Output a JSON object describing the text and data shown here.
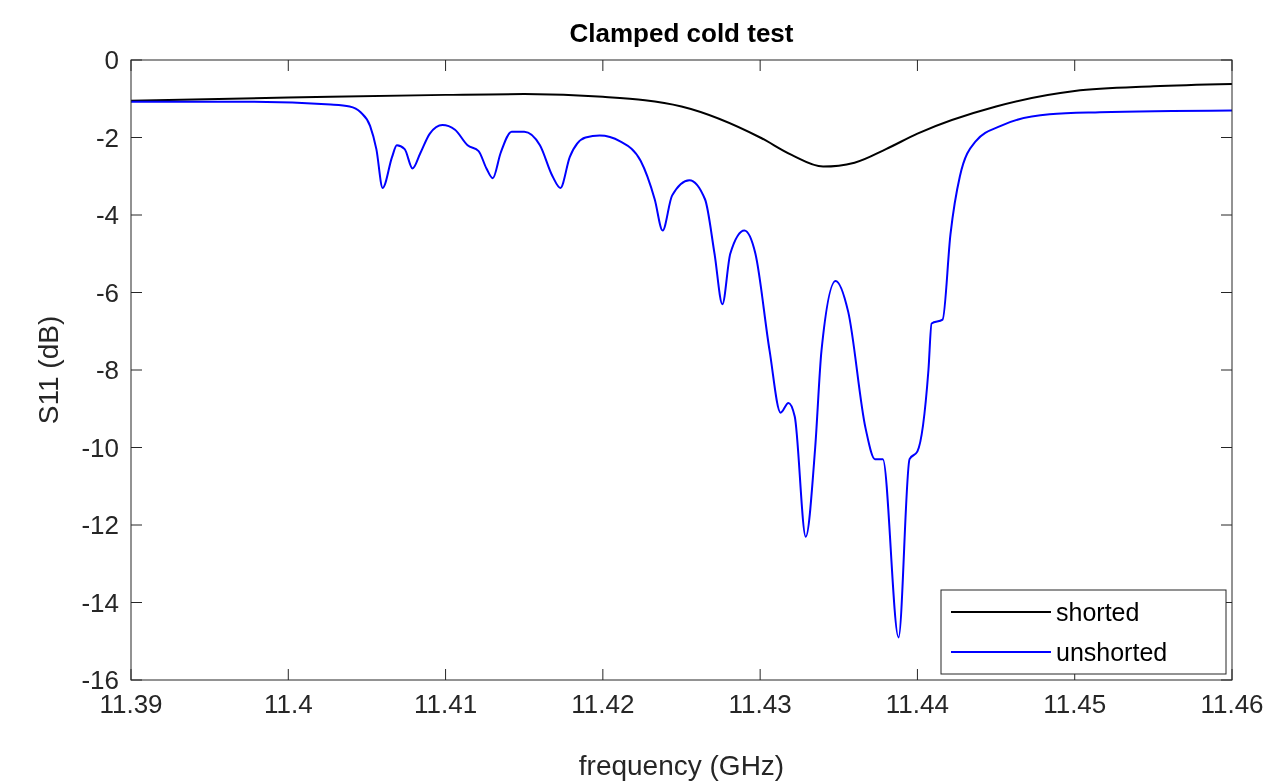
{
  "chart_data": {
    "type": "line",
    "title": "Clamped cold test",
    "xlabel": "frequency (GHz)",
    "ylabel": "S11 (dB)",
    "xlim": [
      11.39,
      11.46
    ],
    "xticks": [
      11.39,
      11.4,
      11.41,
      11.42,
      11.43,
      11.44,
      11.45,
      11.46
    ],
    "ylim": [
      -16,
      0
    ],
    "yticks": [
      -16,
      -14,
      -12,
      -10,
      -8,
      -6,
      -4,
      -2,
      0
    ],
    "grid": false,
    "legend": "bottom right",
    "marker": "none",
    "line_style": "solid",
    "series": [
      {
        "name": "shorted",
        "color": "#000000",
        "x": [
          11.39,
          11.4,
          11.41,
          11.415,
          11.42,
          11.425,
          11.43,
          11.432,
          11.434,
          11.436,
          11.438,
          11.44,
          11.445,
          11.45,
          11.455,
          11.46
        ],
        "values": [
          -1.05,
          -0.97,
          -0.9,
          -0.88,
          -0.95,
          -1.2,
          -2.0,
          -2.45,
          -2.75,
          -2.65,
          -2.3,
          -1.9,
          -1.2,
          -0.8,
          -0.68,
          -0.62
        ]
      },
      {
        "name": "unshorted",
        "color": "#0000ff",
        "x": [
          11.39,
          11.3976,
          11.4027,
          11.4039,
          11.4046,
          11.4052,
          11.4056,
          11.406,
          11.4066,
          11.4069,
          11.4074,
          11.4079,
          11.4084,
          11.409,
          11.4098,
          11.4106,
          11.4114,
          11.4121,
          11.4126,
          11.413,
          11.4135,
          11.4142,
          11.415,
          11.416,
          11.4168,
          11.4173,
          11.4179,
          11.4189,
          11.4198,
          11.4211,
          11.4224,
          11.4233,
          11.4238,
          11.4244,
          11.4255,
          11.4265,
          11.4271,
          11.4276,
          11.4281,
          11.429,
          11.4297,
          11.4306,
          11.4313,
          11.4318,
          11.4322,
          11.4329,
          11.4335,
          11.4339,
          11.4348,
          11.4356,
          11.4367,
          11.4373,
          11.4378,
          11.4388,
          11.4395,
          11.44,
          11.4407,
          11.4409,
          11.4416,
          11.4421,
          11.4427,
          11.4437,
          11.4453,
          11.4484,
          11.4516,
          11.46
        ],
        "values": [
          -1.08,
          -1.08,
          -1.15,
          -1.2,
          -1.35,
          -1.7,
          -2.3,
          -3.3,
          -2.5,
          -2.2,
          -2.3,
          -2.8,
          -2.4,
          -1.9,
          -1.68,
          -1.8,
          -2.2,
          -2.35,
          -2.8,
          -3.05,
          -2.4,
          -1.85,
          -1.85,
          -2.2,
          -3.0,
          -3.3,
          -2.5,
          -2.0,
          -1.95,
          -2.1,
          -2.6,
          -3.6,
          -4.4,
          -3.5,
          -3.1,
          -3.6,
          -5.0,
          -6.3,
          -5.0,
          -4.4,
          -5.0,
          -7.5,
          -9.1,
          -8.85,
          -9.2,
          -12.3,
          -10.0,
          -7.5,
          -5.7,
          -6.5,
          -9.5,
          -10.3,
          -10.3,
          -14.9,
          -10.3,
          -10.1,
          -8.0,
          -6.8,
          -6.7,
          -4.5,
          -3.0,
          -2.1,
          -1.7,
          -1.4,
          -1.35,
          -1.3
        ]
      }
    ]
  }
}
